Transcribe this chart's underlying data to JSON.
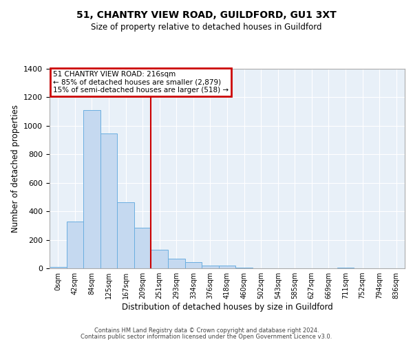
{
  "title": "51, CHANTRY VIEW ROAD, GUILDFORD, GU1 3XT",
  "subtitle": "Size of property relative to detached houses in Guildford",
  "xlabel": "Distribution of detached houses by size in Guildford",
  "ylabel": "Number of detached properties",
  "bar_color": "#c5d9f0",
  "bar_edge_color": "#6aaee0",
  "background_color": "#e8f0f8",
  "annotation_box_color": "#cc0000",
  "vline_color": "#cc0000",
  "vline_x": 5,
  "annotation_title": "51 CHANTRY VIEW ROAD: 216sqm",
  "annotation_line1": "← 85% of detached houses are smaller (2,879)",
  "annotation_line2": "15% of semi-detached houses are larger (518) →",
  "categories": [
    "0sqm",
    "42sqm",
    "84sqm",
    "125sqm",
    "167sqm",
    "209sqm",
    "251sqm",
    "293sqm",
    "334sqm",
    "376sqm",
    "418sqm",
    "460sqm",
    "502sqm",
    "543sqm",
    "585sqm",
    "627sqm",
    "669sqm",
    "711sqm",
    "752sqm",
    "794sqm",
    "836sqm"
  ],
  "values": [
    8,
    328,
    1110,
    945,
    462,
    285,
    128,
    70,
    45,
    18,
    18,
    5,
    0,
    0,
    0,
    0,
    0,
    5,
    0,
    0,
    0
  ],
  "ylim": [
    0,
    1400
  ],
  "yticks": [
    0,
    200,
    400,
    600,
    800,
    1000,
    1200,
    1400
  ],
  "footer1": "Contains HM Land Registry data © Crown copyright and database right 2024.",
  "footer2": "Contains public sector information licensed under the Open Government Licence v3.0."
}
